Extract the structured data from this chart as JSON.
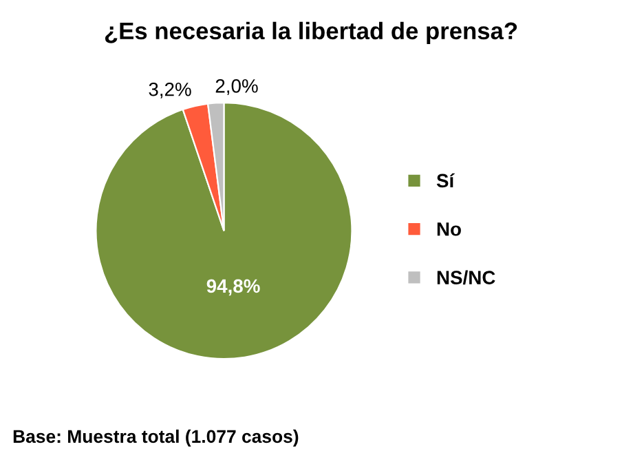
{
  "chart_data": {
    "type": "pie",
    "title": "¿Es necesaria la libertad de prensa?",
    "categories": [
      "Sí",
      "No",
      "NS/NC"
    ],
    "values": [
      94.8,
      3.2,
      2.0
    ],
    "colors": [
      "#77933c",
      "#ff5b3b",
      "#bfbfbf"
    ],
    "value_labels": [
      "94,8%",
      "3,2%",
      "2,0%"
    ],
    "legend": "right",
    "annotations": [
      "Base: Muestra total (1.077 casos)"
    ]
  }
}
